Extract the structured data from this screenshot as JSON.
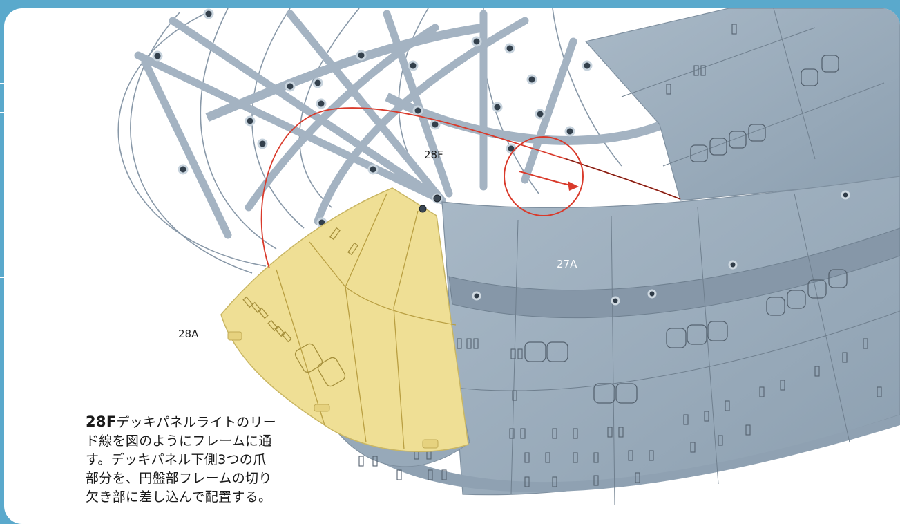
{
  "labels": {
    "part_28f": "28F",
    "part_27a": "27A",
    "part_28a": "28A"
  },
  "instruction": {
    "part_number": "28F",
    "text": "デッキパネルライトのリード線を図のようにフレームに通す。デッキパネル下側3つの爪部分を、円盤部フレームの切り欠き部に差し込んで配置する。"
  },
  "colors": {
    "accent": "#5aa9cc",
    "frame": "#9fb0c0",
    "panel_gray": "#97a9b9",
    "highlight_panel": "#efdf95",
    "route_line": "#d93a2b"
  }
}
